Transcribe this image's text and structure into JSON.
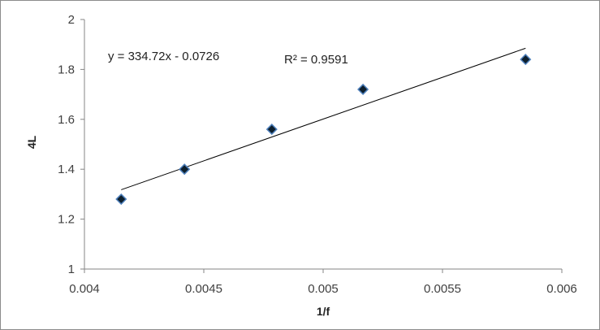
{
  "chart_data": {
    "type": "scatter",
    "title": "",
    "xlabel": "1/f",
    "ylabel": "4L",
    "xlim": [
      0.004,
      0.006
    ],
    "ylim": [
      1,
      2
    ],
    "x_ticks": [
      "0.004",
      "0.0045",
      "0.005",
      "0.0055",
      "0.006"
    ],
    "y_ticks": [
      "1",
      "1.2",
      "1.4",
      "1.6",
      "1.8",
      "2"
    ],
    "grid": false,
    "legend": "none",
    "series": [
      {
        "x": [
          0.004154,
          0.004419,
          0.004785,
          0.005167,
          0.005848
        ],
        "y": [
          1.28,
          1.4,
          1.56,
          1.72,
          1.84
        ]
      }
    ],
    "trendline": {
      "type": "linear",
      "x_start": 0.004154,
      "x_end": 0.005848,
      "slope": 334.72,
      "intercept": -0.0726
    },
    "annotations": [
      "y = 334.72x - 0.0726",
      "R² = 0.9591"
    ],
    "colors": {
      "marker_fill": "#0d1f2d",
      "marker_stroke": "#4f81bd",
      "trendline": "#000000",
      "axis": "#868686"
    }
  }
}
